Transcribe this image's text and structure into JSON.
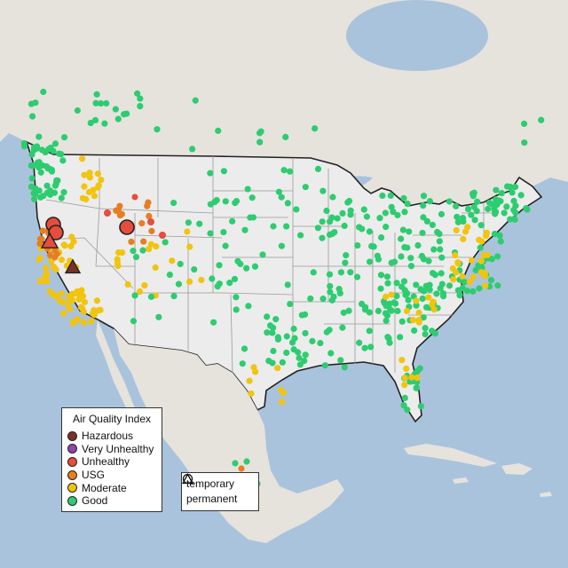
{
  "legend": {
    "title": "Air Quality Index",
    "categories": [
      {
        "label": "Hazardous",
        "color": "#7e2f2a"
      },
      {
        "label": "Very Unhealthy",
        "color": "#8e44ad"
      },
      {
        "label": "Unhealthy",
        "color": "#e74c3c"
      },
      {
        "label": "USG",
        "color": "#e67e22"
      },
      {
        "label": "Moderate",
        "color": "#f1c40f"
      },
      {
        "label": "Good",
        "color": "#2ecc71"
      }
    ],
    "types": [
      {
        "label": "temporary",
        "icon": "circle-icon"
      },
      {
        "label": "permanent",
        "icon": "triangle-icon"
      }
    ]
  },
  "colors": {
    "water": "#aac3dd",
    "land": "#e6e3dd",
    "us": "#ececec",
    "border": "#222222",
    "state_lines": "#9a9a9a"
  }
}
